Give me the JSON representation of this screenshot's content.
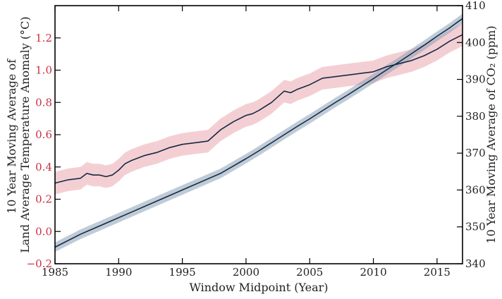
{
  "chart_data": {
    "type": "line",
    "xlabel": "Window Midpoint (Year)",
    "ylabel_left": [
      "10 Year Moving Average of",
      "Land Average Temperature Anomaly (°C)"
    ],
    "ylabel_right": "10 Year Moving Average of CO₂ (ppm)",
    "xlim": [
      1985,
      2017
    ],
    "ylim_left": [
      -0.2,
      1.4
    ],
    "ylim_right": [
      340,
      410
    ],
    "xticks": [
      1985,
      1990,
      1995,
      2000,
      2005,
      2010,
      2015
    ],
    "xtick_labels": [
      "1985",
      "1990",
      "1995",
      "2000",
      "2005",
      "2010",
      "2015"
    ],
    "yticks_left": [
      -0.2,
      0.0,
      0.2,
      0.4,
      0.6,
      0.8,
      1.0,
      1.2
    ],
    "ytick_labels_left": [
      "−0.2",
      "0.0",
      "0.2",
      "0.4",
      "0.6",
      "0.8",
      "1.0",
      "1.2"
    ],
    "yticks_right": [
      340,
      350,
      360,
      370,
      380,
      390,
      400,
      410
    ],
    "ytick_labels_right": [
      "340",
      "350",
      "360",
      "370",
      "380",
      "390",
      "400",
      "410"
    ],
    "grid": false,
    "colors": {
      "temp_band": "#e8a0aa",
      "co2_band": "#8aa0b4",
      "line": "#162a45",
      "left_tick_text": "#c9303f",
      "right_tick_text": "#222222",
      "axis": "#000000"
    },
    "series": [
      {
        "axis": "left",
        "band_halfwidth": 0.07,
        "x": [
          1985,
          1986,
          1987,
          1987.5,
          1988,
          1988.5,
          1989,
          1989.5,
          1990,
          1990.5,
          1991,
          1992,
          1993,
          1994,
          1995,
          1996,
          1997,
          1998,
          1999,
          2000,
          2000.5,
          2001,
          2002,
          2003,
          2003.5,
          2004,
          2005,
          2006,
          2007,
          2008,
          2009,
          2010,
          2011,
          2012,
          2013,
          2014,
          2015,
          2016,
          2017
        ],
        "y": [
          0.3,
          0.32,
          0.33,
          0.36,
          0.35,
          0.35,
          0.34,
          0.35,
          0.38,
          0.42,
          0.44,
          0.47,
          0.49,
          0.52,
          0.54,
          0.55,
          0.56,
          0.63,
          0.68,
          0.72,
          0.73,
          0.75,
          0.8,
          0.87,
          0.86,
          0.88,
          0.91,
          0.95,
          0.96,
          0.97,
          0.98,
          0.99,
          1.02,
          1.04,
          1.06,
          1.09,
          1.13,
          1.18,
          1.22
        ]
      },
      {
        "axis": "right",
        "band_halfwidth": 1.3,
        "x": [
          1985,
          1987,
          1989,
          1991,
          1993,
          1995,
          1997,
          1998,
          1999,
          2000,
          2001,
          2002,
          2003,
          2004,
          2005,
          2006,
          2007,
          2008,
          2009,
          2010,
          2011,
          2012,
          2013,
          2014,
          2015,
          2016,
          2017
        ],
        "y": [
          344.5,
          348.0,
          351.0,
          354.0,
          357.0,
          360.0,
          363.0,
          364.5,
          366.5,
          368.5,
          370.6,
          372.8,
          375.0,
          377.2,
          379.3,
          381.5,
          383.7,
          385.8,
          388.0,
          390.2,
          392.5,
          394.7,
          397.0,
          399.3,
          401.7,
          404.0,
          406.5
        ]
      }
    ]
  }
}
